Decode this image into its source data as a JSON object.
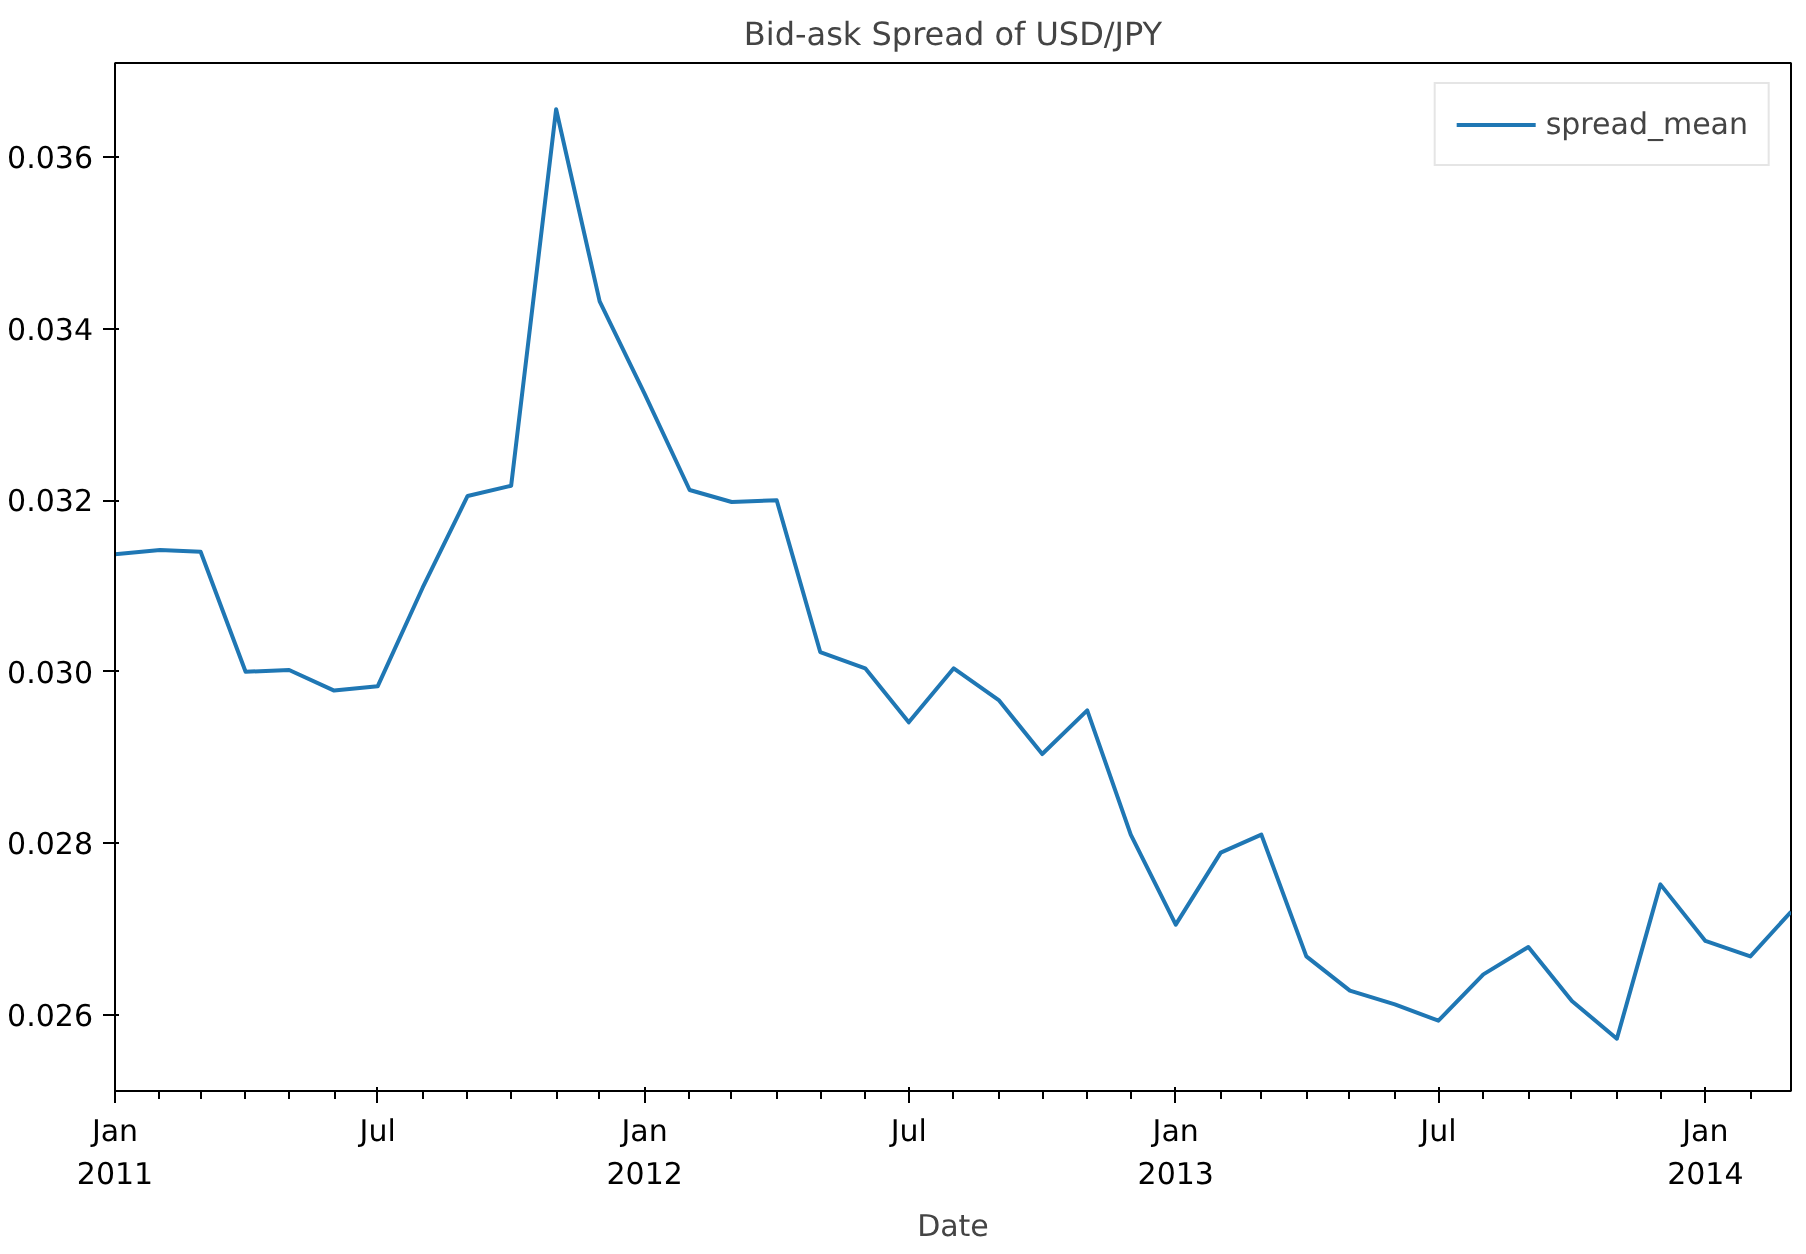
{
  "chart_data": {
    "type": "line",
    "title": "Bid-ask Spread of USD/JPY",
    "xlabel": "Date",
    "x": [
      "2011-01",
      "2011-02",
      "2011-03",
      "2011-04",
      "2011-05",
      "2011-06",
      "2011-07",
      "2011-08",
      "2011-09",
      "2011-10",
      "2011-11",
      "2011-12",
      "2012-01",
      "2012-02",
      "2012-03",
      "2012-04",
      "2012-05",
      "2012-06",
      "2012-07",
      "2012-08",
      "2012-09",
      "2012-10",
      "2012-11",
      "2012-12",
      "2013-01",
      "2013-02",
      "2013-03",
      "2013-04",
      "2013-05",
      "2013-06",
      "2013-07",
      "2013-08",
      "2013-09",
      "2013-10",
      "2013-11",
      "2013-12",
      "2014-01",
      "2014-02",
      "2014-03"
    ],
    "series": [
      {
        "name": "spread_mean",
        "color": "#1f77b4",
        "values": [
          0.03137,
          0.03142,
          0.0314,
          0.03,
          0.03002,
          0.02978,
          0.02983,
          0.03098,
          0.03205,
          0.03217,
          0.03656,
          0.03432,
          0.03324,
          0.03212,
          0.03198,
          0.032,
          0.03023,
          0.03004,
          0.02941,
          0.03004,
          0.02967,
          0.02904,
          0.02955,
          0.0281,
          0.02705,
          0.02789,
          0.0281,
          0.02668,
          0.02628,
          0.02612,
          0.02593,
          0.02647,
          0.02679,
          0.02616,
          0.02572,
          0.02752,
          0.02686,
          0.02668,
          0.0272
        ]
      }
    ],
    "xlim": [
      "2011-01-01",
      "2014-03-01"
    ],
    "xticks": [
      {
        "value": "2011-01",
        "label": "Jan\n2011"
      },
      {
        "value": "2011-02",
        "label": null
      },
      {
        "value": "2011-03",
        "label": null
      },
      {
        "value": "2011-04",
        "label": null
      },
      {
        "value": "2011-05",
        "label": null
      },
      {
        "value": "2011-06",
        "label": null
      },
      {
        "value": "2011-07",
        "label": "Jul"
      },
      {
        "value": "2011-08",
        "label": null
      },
      {
        "value": "2011-09",
        "label": null
      },
      {
        "value": "2011-10",
        "label": null
      },
      {
        "value": "2011-11",
        "label": null
      },
      {
        "value": "2011-12",
        "label": null
      },
      {
        "value": "2012-01",
        "label": "Jan\n2012"
      },
      {
        "value": "2012-02",
        "label": null
      },
      {
        "value": "2012-03",
        "label": null
      },
      {
        "value": "2012-04",
        "label": null
      },
      {
        "value": "2012-05",
        "label": null
      },
      {
        "value": "2012-06",
        "label": null
      },
      {
        "value": "2012-07",
        "label": "Jul"
      },
      {
        "value": "2012-08",
        "label": null
      },
      {
        "value": "2012-09",
        "label": null
      },
      {
        "value": "2012-10",
        "label": null
      },
      {
        "value": "2012-11",
        "label": null
      },
      {
        "value": "2012-12",
        "label": null
      },
      {
        "value": "2013-01",
        "label": "Jan\n2013"
      },
      {
        "value": "2013-02",
        "label": null
      },
      {
        "value": "2013-03",
        "label": null
      },
      {
        "value": "2013-04",
        "label": null
      },
      {
        "value": "2013-05",
        "label": null
      },
      {
        "value": "2013-06",
        "label": null
      },
      {
        "value": "2013-07",
        "label": "Jul"
      },
      {
        "value": "2013-08",
        "label": null
      },
      {
        "value": "2013-09",
        "label": null
      },
      {
        "value": "2013-10",
        "label": null
      },
      {
        "value": "2013-11",
        "label": null
      },
      {
        "value": "2013-12",
        "label": null
      },
      {
        "value": "2014-01",
        "label": "Jan\n2014"
      },
      {
        "value": "2014-02",
        "label": null
      }
    ],
    "ylim": [
      0.02511,
      0.0371
    ],
    "yticks": [
      {
        "value": 0.026,
        "label": "0.026"
      },
      {
        "value": 0.028,
        "label": "0.028"
      },
      {
        "value": 0.03,
        "label": "0.030"
      },
      {
        "value": 0.032,
        "label": "0.032"
      },
      {
        "value": 0.034,
        "label": "0.034"
      },
      {
        "value": 0.036,
        "label": "0.036"
      }
    ],
    "legend": "top right",
    "grid": false,
    "line_style": "solid",
    "marker": "none"
  }
}
